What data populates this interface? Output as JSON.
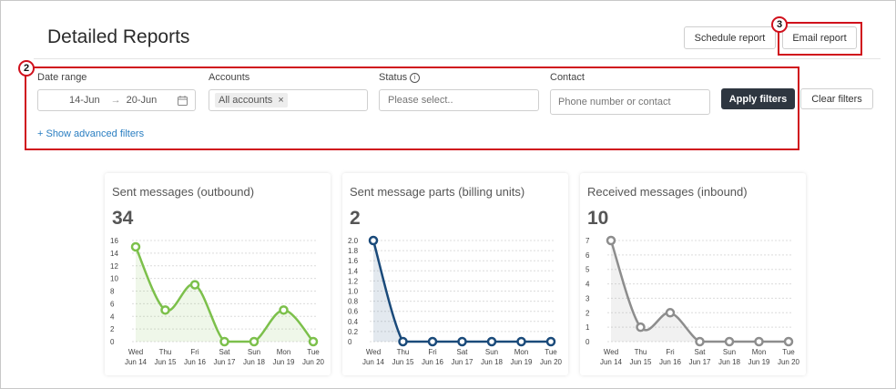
{
  "page": {
    "title": "Detailed Reports"
  },
  "toolbar": {
    "schedule_label": "Schedule report",
    "email_label": "Email report"
  },
  "annotations": {
    "filters_badge": "2",
    "email_badge": "3"
  },
  "filters": {
    "date_range": {
      "label": "Date range",
      "from": "14-Jun",
      "to": "20-Jun",
      "arrow": "→"
    },
    "accounts": {
      "label": "Accounts",
      "chip": "All accounts",
      "chip_remove": "×"
    },
    "status": {
      "label": "Status",
      "info": "i",
      "placeholder": "Please select.."
    },
    "contact": {
      "label": "Contact",
      "placeholder": "Phone number or contact"
    },
    "apply_label": "Apply filters",
    "clear_label": "Clear filters",
    "advanced_link": "+ Show advanced filters"
  },
  "colors": {
    "green": "#7cc04b",
    "navy": "#1a4a7a",
    "gray": "#8d8d8d",
    "annotation": "#d0101c"
  },
  "cards": [
    {
      "title": "Sent messages (outbound)",
      "value": "34"
    },
    {
      "title": "Sent message parts (billing units)",
      "value": "2"
    },
    {
      "title": "Received messages (inbound)",
      "value": "10"
    }
  ],
  "chart_data": [
    {
      "type": "line",
      "categories": [
        "Wed Jun 14",
        "Thu Jun 15",
        "Fri Jun 16",
        "Sat Jun 17",
        "Sun Jun 18",
        "Mon Jun 19",
        "Tue Jun 20"
      ],
      "values": [
        15,
        5,
        9,
        0,
        0,
        5,
        0
      ],
      "ylim": [
        0,
        16
      ],
      "yticks": [
        "0",
        "2",
        "4",
        "6",
        "8",
        "10",
        "12",
        "14",
        "16"
      ],
      "color": "#7cc04b",
      "grid": true
    },
    {
      "type": "line",
      "categories": [
        "Wed Jun 14",
        "Thu Jun 15",
        "Fri Jun 16",
        "Sat Jun 17",
        "Sun Jun 18",
        "Mon Jun 19",
        "Tue Jun 20"
      ],
      "values": [
        2,
        0,
        0,
        0,
        0,
        0,
        0
      ],
      "ylim": [
        0,
        2
      ],
      "yticks": [
        "0",
        "0.2",
        "0.4",
        "0.6",
        "0.8",
        "1.0",
        "1.2",
        "1.4",
        "1.6",
        "1.8",
        "2.0"
      ],
      "color": "#1a4a7a",
      "grid": true
    },
    {
      "type": "line",
      "categories": [
        "Wed Jun 14",
        "Thu Jun 15",
        "Fri Jun 16",
        "Sat Jun 17",
        "Sun Jun 18",
        "Mon Jun 19",
        "Tue Jun 20"
      ],
      "values": [
        7,
        1,
        2,
        0,
        0,
        0,
        0
      ],
      "ylim": [
        0,
        7
      ],
      "yticks": [
        "0",
        "1",
        "2",
        "3",
        "4",
        "5",
        "6",
        "7"
      ],
      "color": "#8d8d8d",
      "grid": true
    }
  ]
}
